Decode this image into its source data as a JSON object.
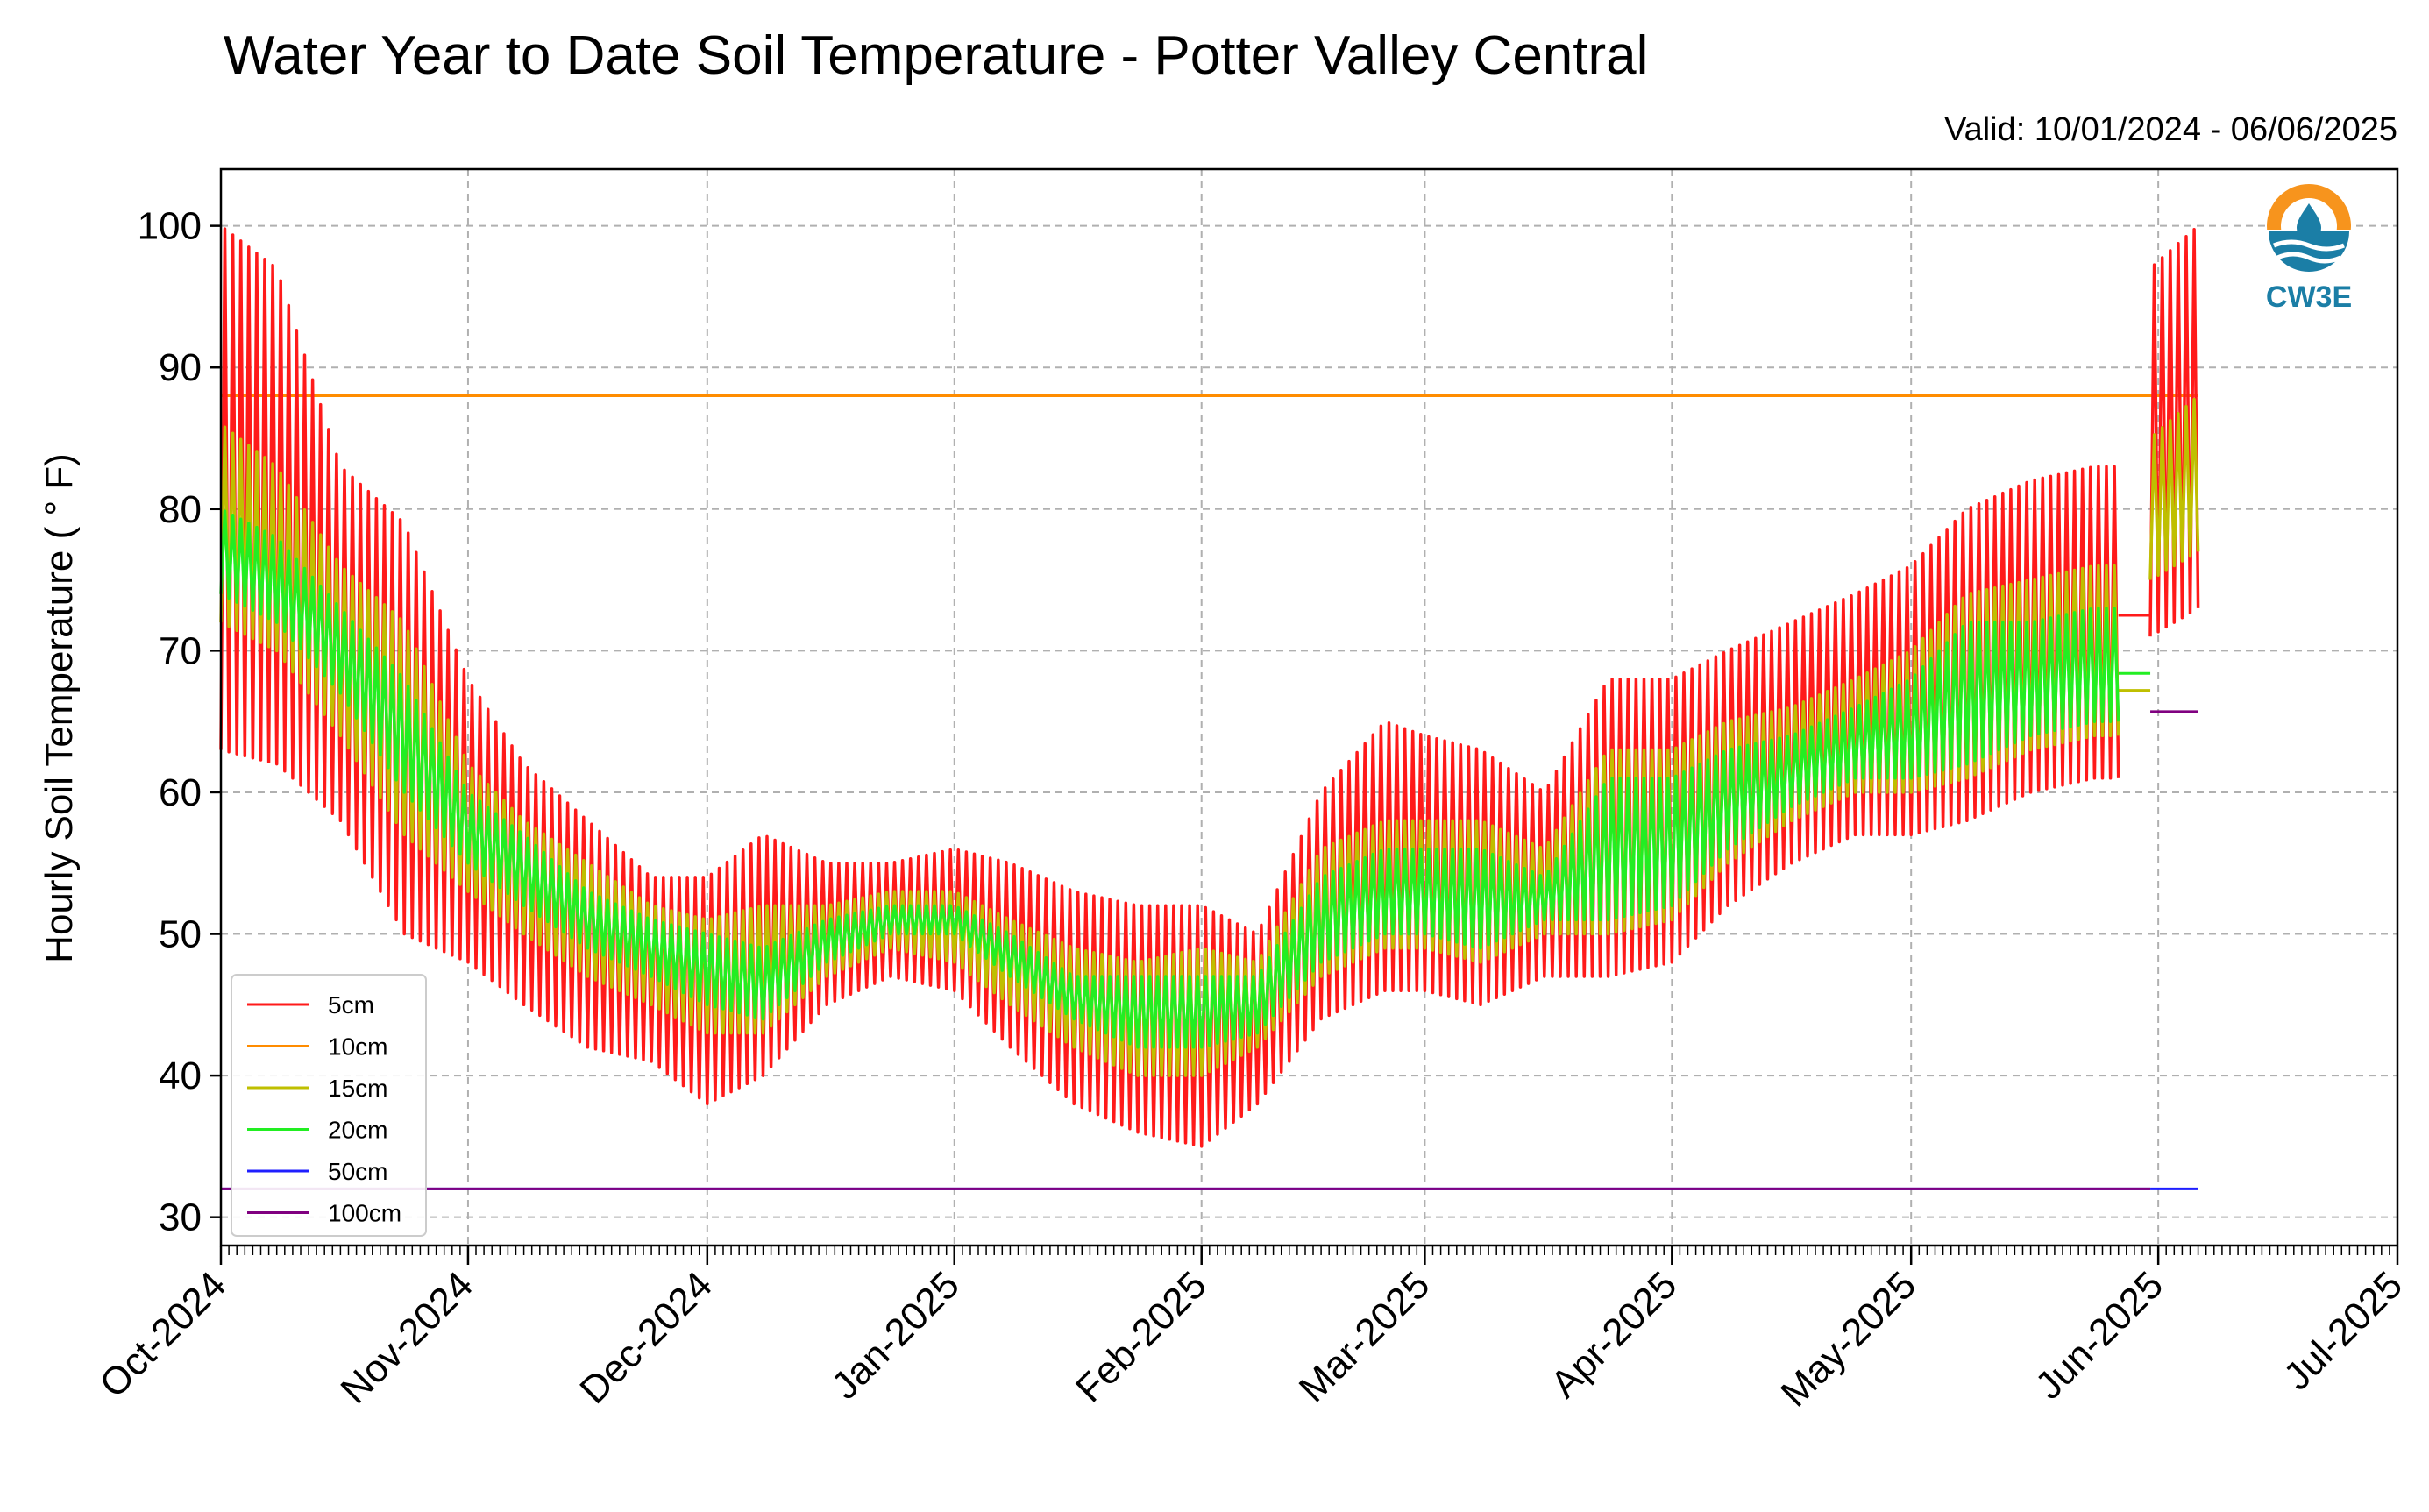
{
  "chart_data": {
    "type": "line",
    "title": "Water Year to Date Soil Temperature - Potter Valley Central",
    "subtitle": "Valid: 10/01/2024 - 06/06/2025",
    "xlabel": "",
    "ylabel": "Hourly Soil Temperature ( ° F)",
    "x_range": [
      "2024-10-01",
      "2025-07-01"
    ],
    "ylim": [
      28,
      104
    ],
    "y_ticks": [
      30,
      40,
      50,
      60,
      70,
      80,
      90,
      100
    ],
    "x_ticks": [
      {
        "date": "2024-10-01",
        "label": "Oct-2024"
      },
      {
        "date": "2024-11-01",
        "label": "Nov-2024"
      },
      {
        "date": "2024-12-01",
        "label": "Dec-2024"
      },
      {
        "date": "2025-01-01",
        "label": "Jan-2025"
      },
      {
        "date": "2025-02-01",
        "label": "Feb-2025"
      },
      {
        "date": "2025-03-01",
        "label": "Mar-2025"
      },
      {
        "date": "2025-04-01",
        "label": "Apr-2025"
      },
      {
        "date": "2025-05-01",
        "label": "May-2025"
      },
      {
        "date": "2025-06-01",
        "label": "Jun-2025"
      },
      {
        "date": "2025-07-01",
        "label": "Jul-2025"
      }
    ],
    "grid": true,
    "legend_position": "lower-left",
    "logo_text": "CW3E",
    "series": [
      {
        "name": "5cm",
        "color": "#ff1a1a",
        "style": "diurnal",
        "segments": [
          {
            "x": [
              "2024-10-01",
              "2024-10-08",
              "2024-10-16",
              "2024-10-24",
              "2024-11-01",
              "2024-11-08",
              "2024-11-16",
              "2024-11-24",
              "2024-12-01",
              "2024-12-08",
              "2024-12-16",
              "2024-12-24",
              "2025-01-01",
              "2025-01-08",
              "2025-01-16",
              "2025-01-24",
              "2025-02-01",
              "2025-02-08",
              "2025-02-16",
              "2025-02-24",
              "2025-03-01",
              "2025-03-08",
              "2025-03-16",
              "2025-03-24",
              "2025-04-01",
              "2025-04-08",
              "2025-04-16",
              "2025-04-24",
              "2025-05-01",
              "2025-05-08",
              "2025-05-16",
              "2025-05-24",
              "2025-05-27"
            ],
            "max": [
              100,
              97,
              83,
              79,
              68,
              62,
              58,
              54,
              54,
              57,
              55,
              55,
              56,
              55,
              53,
              52,
              52,
              50,
              60,
              65,
              64,
              63,
              60,
              68,
              68,
              70,
              72,
              74,
              76,
              80,
              82,
              83,
              83
            ],
            "min": [
              63,
              62,
              58,
              50,
              48,
              45,
              42,
              41,
              38,
              40,
              45,
              47,
              46,
              42,
              38,
              36,
              35,
              38,
              44,
              46,
              46,
              45,
              47,
              47,
              48,
              52,
              55,
              57,
              57,
              58,
              60,
              61,
              61
            ]
          }
        ],
        "constant_segments": [
          {
            "x": [
              "2025-05-27",
              "2025-05-31"
            ],
            "value": 72.5
          }
        ],
        "extra_segments": [
          {
            "x": [
              "2025-05-31",
              "2025-06-06"
            ],
            "max": [
              97,
              100
            ],
            "min": [
              71,
              73
            ]
          }
        ]
      },
      {
        "name": "10cm",
        "color": "#ff8c00",
        "style": "constant",
        "constant_segments": [
          {
            "x": [
              "2024-10-01",
              "2025-05-31"
            ],
            "value": 88
          },
          {
            "x": [
              "2025-05-31",
              "2025-06-06"
            ],
            "value": 88
          }
        ]
      },
      {
        "name": "15cm",
        "color": "#bfbf00",
        "style": "diurnal",
        "segments": [
          {
            "x": [
              "2024-10-01",
              "2024-10-08",
              "2024-10-16",
              "2024-10-24",
              "2024-11-01",
              "2024-11-08",
              "2024-11-16",
              "2024-11-24",
              "2024-12-01",
              "2024-12-08",
              "2024-12-16",
              "2024-12-24",
              "2025-01-01",
              "2025-01-08",
              "2025-01-16",
              "2025-01-24",
              "2025-02-01",
              "2025-02-08",
              "2025-02-16",
              "2025-02-24",
              "2025-03-01",
              "2025-03-08",
              "2025-03-16",
              "2025-03-24",
              "2025-04-01",
              "2025-04-08",
              "2025-04-16",
              "2025-04-24",
              "2025-05-01",
              "2025-05-08",
              "2025-05-16",
              "2025-05-24",
              "2025-05-27"
            ],
            "max": [
              86,
              83,
              76,
              72,
              62,
              58,
              55,
              52,
              51,
              52,
              52,
              53,
              53,
              51,
              49,
              48,
              49,
              48,
              56,
              58,
              58,
              58,
              56,
              63,
              63,
              65,
              66,
              68,
              70,
              74,
              75,
              76,
              76
            ],
            "min": [
              72,
              70,
              64,
              57,
              53,
              50,
              47,
              45,
              43,
              43,
              47,
              49,
              48,
              45,
              42,
              40,
              40,
              42,
              47,
              49,
              49,
              48,
              50,
              50,
              51,
              55,
              58,
              60,
              60,
              61,
              63,
              64,
              64
            ]
          }
        ],
        "constant_segments": [
          {
            "x": [
              "2025-05-27",
              "2025-05-31"
            ],
            "value": 67.2
          }
        ],
        "extra_segments": [
          {
            "x": [
              "2025-05-31",
              "2025-06-06"
            ],
            "max": [
              85,
              88
            ],
            "min": [
              75,
              77
            ]
          }
        ]
      },
      {
        "name": "20cm",
        "color": "#22ee22",
        "style": "diurnal",
        "segments": [
          {
            "x": [
              "2024-10-01",
              "2024-10-08",
              "2024-10-16",
              "2024-10-24",
              "2024-11-01",
              "2024-11-08",
              "2024-11-16",
              "2024-11-24",
              "2024-12-01",
              "2024-12-08",
              "2024-12-16",
              "2024-12-24",
              "2025-01-01",
              "2025-01-08",
              "2025-01-16",
              "2025-01-24",
              "2025-02-01",
              "2025-02-08",
              "2025-02-16",
              "2025-02-24",
              "2025-03-01",
              "2025-03-08",
              "2025-03-16",
              "2025-03-24",
              "2025-04-01",
              "2025-04-08",
              "2025-04-16",
              "2025-04-24",
              "2025-05-01",
              "2025-05-08",
              "2025-05-16",
              "2025-05-24",
              "2025-05-27"
            ],
            "max": [
              80,
              78,
              73,
              68,
              60,
              57,
              53,
              51,
              50,
              49,
              51,
              52,
              52,
              50,
              47,
              47,
              47,
              47,
              54,
              56,
              56,
              56,
              54,
              61,
              61,
              63,
              64,
              66,
              68,
              72,
              72,
              73,
              73
            ],
            "min": [
              74,
              72,
              67,
              60,
              55,
              52,
              49,
              47,
              45,
              44,
              48,
              50,
              50,
              47,
              44,
              42,
              42,
              43,
              48,
              50,
              50,
              49,
              51,
              51,
              52,
              56,
              59,
              61,
              61,
              62,
              64,
              65,
              65
            ]
          }
        ],
        "constant_segments": [
          {
            "x": [
              "2025-05-27",
              "2025-05-31"
            ],
            "value": 68.4
          }
        ]
      },
      {
        "name": "50cm",
        "color": "#1f1fff",
        "style": "constant",
        "constant_segments": [
          {
            "x": [
              "2024-10-01",
              "2025-05-31"
            ],
            "value": 32
          },
          {
            "x": [
              "2025-05-31",
              "2025-06-06"
            ],
            "value": 32
          }
        ]
      },
      {
        "name": "100cm",
        "color": "#800080",
        "style": "constant",
        "constant_segments": [
          {
            "x": [
              "2024-10-01",
              "2025-05-31"
            ],
            "value": 32
          },
          {
            "x": [
              "2025-05-31",
              "2025-06-06"
            ],
            "value": 65.7
          }
        ]
      }
    ]
  }
}
